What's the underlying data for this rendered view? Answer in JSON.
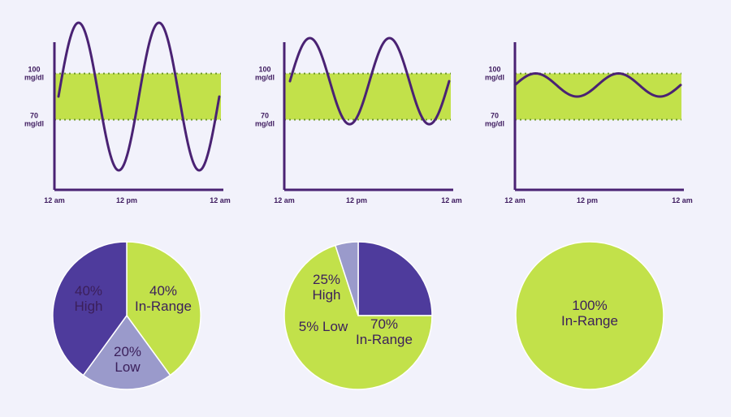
{
  "colors": {
    "background": "#f2f2fb",
    "range_band": "#c2e14a",
    "curve": "#4a2273",
    "axis": "#4a2273",
    "pie_in_range": "#c2e14a",
    "pie_high": "#4e3b9c",
    "pie_low": "#9a9acb"
  },
  "chart_data": [
    {
      "type": "line",
      "y_ticks": [
        {
          "value": 100,
          "label": [
            "100",
            "mg/dl"
          ]
        },
        {
          "value": 70,
          "label": [
            "70",
            "mg/dl"
          ]
        }
      ],
      "x_ticks": [
        "12 am",
        "12 pm",
        "12 am"
      ],
      "ylim": [
        37,
        133
      ],
      "band": [
        70,
        100
      ],
      "series": [
        {
          "x": [
            0,
            6,
            12,
            18,
            24
          ],
          "values": [
            84,
            133,
            37,
            133,
            84
          ]
        }
      ]
    },
    {
      "type": "line",
      "y_ticks": [
        {
          "value": 100,
          "label": [
            "100",
            "mg/dl"
          ]
        },
        {
          "value": 70,
          "label": [
            "70",
            "mg/dl"
          ]
        }
      ],
      "x_ticks": [
        "12 am",
        "12 pm",
        "12 am"
      ],
      "ylim": [
        37,
        133
      ],
      "band": [
        70,
        100
      ],
      "series": [
        {
          "x": [
            0,
            6,
            12,
            18,
            24
          ],
          "values": [
            85,
            123,
            67,
            123,
            85
          ]
        }
      ]
    },
    {
      "type": "line",
      "y_ticks": [
        {
          "value": 100,
          "label": [
            "100",
            "mg/dl"
          ]
        },
        {
          "value": 70,
          "label": [
            "70",
            "mg/dl"
          ]
        }
      ],
      "x_ticks": [
        "12 am",
        "12 pm",
        "12 am"
      ],
      "ylim": [
        37,
        133
      ],
      "band": [
        70,
        100
      ],
      "series": [
        {
          "x": [
            0,
            6,
            12,
            18,
            24
          ],
          "values": [
            85,
            100,
            85,
            100,
            85
          ]
        }
      ]
    },
    {
      "type": "pie",
      "slices": [
        {
          "key": "in_range",
          "value": 40,
          "label": [
            "40%",
            "In-Range"
          ]
        },
        {
          "key": "low",
          "value": 20,
          "label": [
            "20%",
            "Low"
          ]
        },
        {
          "key": "high",
          "value": 40,
          "label": [
            "40%",
            "High"
          ]
        }
      ]
    },
    {
      "type": "pie",
      "slices": [
        {
          "key": "in_range",
          "value": 70,
          "label": [
            "70%",
            "In-Range"
          ]
        },
        {
          "key": "low",
          "value": 5,
          "label": [
            "5% Low"
          ]
        },
        {
          "key": "high",
          "value": 25,
          "label": [
            "25%",
            "High"
          ]
        }
      ]
    },
    {
      "type": "pie",
      "slices": [
        {
          "key": "in_range",
          "value": 100,
          "label": [
            "100%",
            "In-Range"
          ]
        }
      ]
    }
  ]
}
